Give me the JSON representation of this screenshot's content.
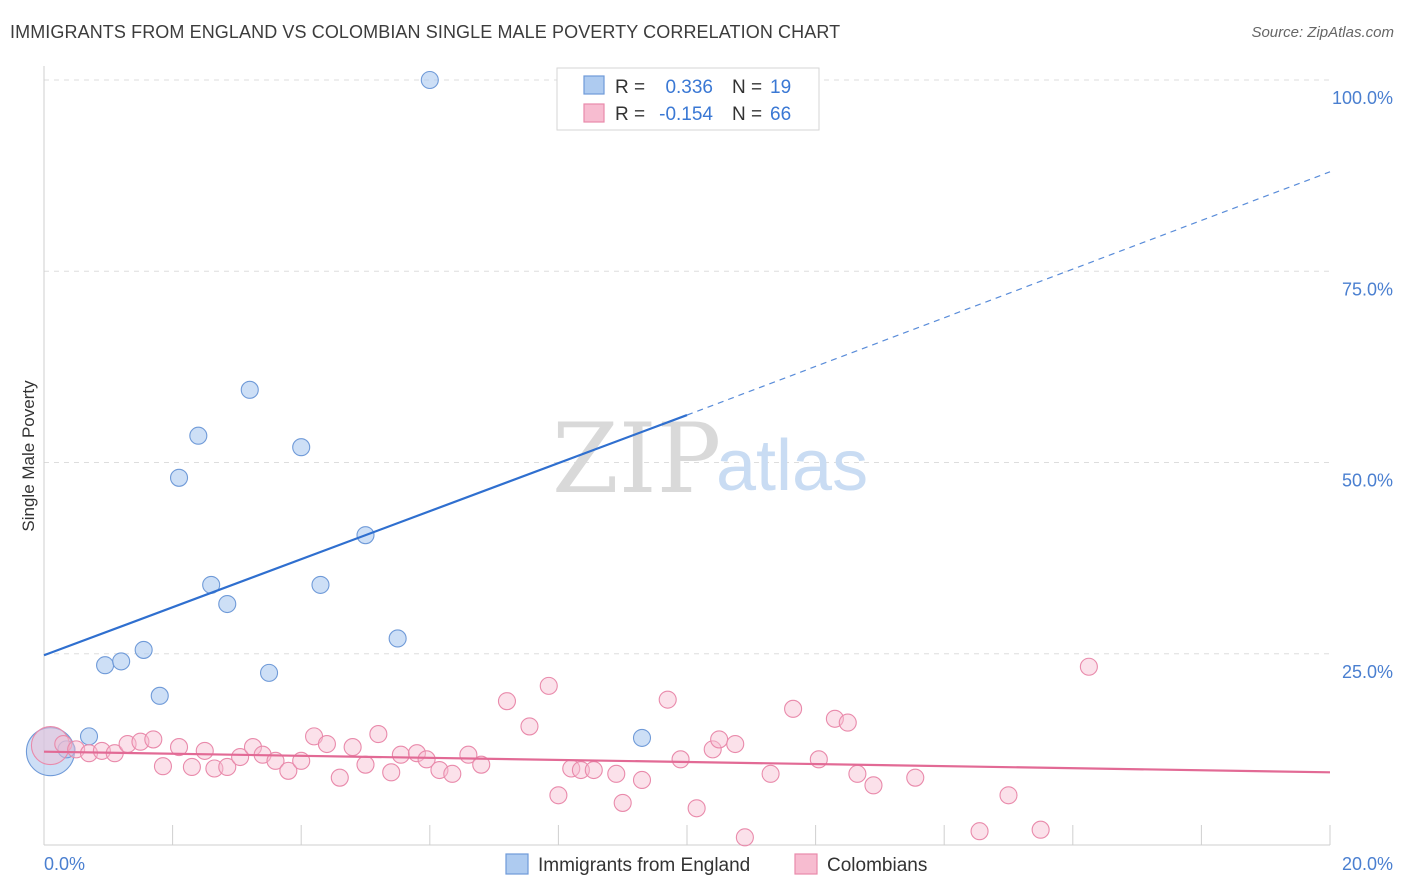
{
  "header": {
    "title": "IMMIGRANTS FROM ENGLAND VS COLOMBIAN SINGLE MALE POVERTY CORRELATION CHART",
    "source": "Source: ZipAtlas.com"
  },
  "watermark": {
    "zip": "ZIP",
    "atlas": "atlas"
  },
  "colors": {
    "england_fill": "#aecbf0",
    "england_stroke": "#6f9ad8",
    "england_line": "#2f6fcf",
    "colombia_fill": "#f7bcd0",
    "colombia_stroke": "#e98aab",
    "colombia_line": "#e26a95",
    "grid": "#dddddd",
    "tick_text": "#4a7fd0"
  },
  "chart_data": {
    "type": "scatter",
    "title": "IMMIGRANTS FROM ENGLAND VS COLOMBIAN SINGLE MALE POVERTY CORRELATION CHART",
    "xlabel": "",
    "ylabel": "Single Male Poverty",
    "xlim": [
      0,
      20
    ],
    "ylim": [
      0,
      100
    ],
    "x_tick_labels": [
      "0.0%",
      "20.0%"
    ],
    "y_ticks": [
      25,
      50,
      75,
      100
    ],
    "y_tick_labels": [
      "25.0%",
      "50.0%",
      "75.0%",
      "100.0%"
    ],
    "grid": true,
    "legend_stats": [
      {
        "series": "Immigrants from England",
        "r_label": "R =",
        "r": "0.336",
        "n_label": "N =",
        "n": "19"
      },
      {
        "series": "Colombians",
        "r_label": "R =",
        "r": "-0.154",
        "n_label": "N =",
        "n": "66"
      }
    ],
    "series": [
      {
        "name": "Immigrants from England",
        "points": [
          [
            0.1,
            12.2,
            3
          ],
          [
            0.35,
            12.5,
            1
          ],
          [
            0.7,
            14.2,
            1
          ],
          [
            0.95,
            23.5,
            1
          ],
          [
            1.2,
            24.0,
            1
          ],
          [
            1.55,
            25.5,
            1
          ],
          [
            1.8,
            19.5,
            1
          ],
          [
            2.1,
            48.0,
            1
          ],
          [
            2.4,
            53.5,
            1
          ],
          [
            2.6,
            34.0,
            1
          ],
          [
            2.85,
            31.5,
            1
          ],
          [
            3.2,
            59.5,
            1
          ],
          [
            3.5,
            22.5,
            1
          ],
          [
            4.0,
            52.0,
            1
          ],
          [
            4.3,
            34.0,
            1
          ],
          [
            5.0,
            40.5,
            1
          ],
          [
            5.5,
            27.0,
            1
          ],
          [
            6.0,
            100.0,
            1
          ],
          [
            9.3,
            14.0,
            1
          ]
        ],
        "trend": {
          "x0": 0,
          "y0": 24.8,
          "x1": 10,
          "y1": 56.2,
          "dash_x1": 20,
          "dash_y1": 88.0
        }
      },
      {
        "name": "Colombians",
        "points": [
          [
            0.1,
            13.0,
            2
          ],
          [
            0.3,
            13.2,
            1
          ],
          [
            0.5,
            12.5,
            1
          ],
          [
            0.7,
            12.0,
            1
          ],
          [
            0.9,
            12.3,
            1
          ],
          [
            1.1,
            12.0,
            1
          ],
          [
            1.3,
            13.2,
            1
          ],
          [
            1.5,
            13.5,
            1
          ],
          [
            1.7,
            13.8,
            1
          ],
          [
            1.85,
            10.3,
            1
          ],
          [
            2.1,
            12.8,
            1
          ],
          [
            2.3,
            10.2,
            1
          ],
          [
            2.5,
            12.3,
            1
          ],
          [
            2.65,
            10.0,
            1
          ],
          [
            2.85,
            10.2,
            1
          ],
          [
            3.05,
            11.5,
            1
          ],
          [
            3.25,
            12.8,
            1
          ],
          [
            3.4,
            11.8,
            1
          ],
          [
            3.6,
            11.0,
            1
          ],
          [
            3.8,
            9.7,
            1
          ],
          [
            4.0,
            11.0,
            1
          ],
          [
            4.2,
            14.2,
            1
          ],
          [
            4.4,
            13.2,
            1
          ],
          [
            4.6,
            8.8,
            1
          ],
          [
            4.8,
            12.8,
            1
          ],
          [
            5.0,
            10.5,
            1
          ],
          [
            5.2,
            14.5,
            1
          ],
          [
            5.4,
            9.5,
            1
          ],
          [
            5.55,
            11.8,
            1
          ],
          [
            5.8,
            12.0,
            1
          ],
          [
            5.95,
            11.2,
            1
          ],
          [
            6.15,
            9.8,
            1
          ],
          [
            6.35,
            9.3,
            1
          ],
          [
            6.6,
            11.8,
            1
          ],
          [
            6.8,
            10.5,
            1
          ],
          [
            7.2,
            18.8,
            1
          ],
          [
            7.55,
            15.5,
            1
          ],
          [
            7.85,
            20.8,
            1
          ],
          [
            8.0,
            6.5,
            1
          ],
          [
            8.2,
            10.0,
            1
          ],
          [
            8.35,
            9.8,
            1
          ],
          [
            8.55,
            9.8,
            1
          ],
          [
            8.9,
            9.3,
            1
          ],
          [
            9.0,
            5.5,
            1
          ],
          [
            9.3,
            8.5,
            1
          ],
          [
            9.7,
            19.0,
            1
          ],
          [
            9.9,
            11.2,
            1
          ],
          [
            10.15,
            4.8,
            1
          ],
          [
            10.4,
            12.5,
            1
          ],
          [
            10.5,
            13.8,
            1
          ],
          [
            10.75,
            13.2,
            1
          ],
          [
            10.9,
            1.0,
            1
          ],
          [
            11.3,
            9.3,
            1
          ],
          [
            11.65,
            17.8,
            1
          ],
          [
            12.05,
            11.2,
            1
          ],
          [
            12.3,
            16.5,
            1
          ],
          [
            12.5,
            16.0,
            1
          ],
          [
            12.65,
            9.3,
            1
          ],
          [
            12.9,
            7.8,
            1
          ],
          [
            13.55,
            8.8,
            1
          ],
          [
            14.55,
            1.8,
            1
          ],
          [
            15.0,
            6.5,
            1
          ],
          [
            15.5,
            2.0,
            1
          ],
          [
            16.25,
            23.3,
            1
          ]
        ],
        "trend": {
          "x0": 0,
          "y0": 12.2,
          "x1": 20,
          "y1": 9.5
        }
      }
    ]
  },
  "bottom_legend": [
    {
      "label": "Immigrants from England"
    },
    {
      "label": "Colombians"
    }
  ]
}
